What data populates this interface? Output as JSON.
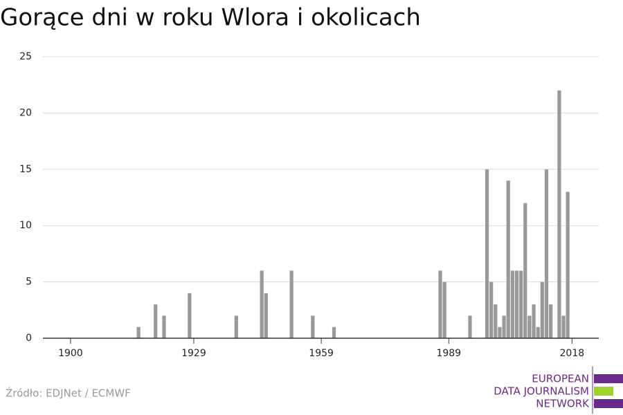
{
  "chart_data": {
    "type": "bar",
    "title": "Gorące dni w roku Wlora i okolicach",
    "x": [
      1916,
      1920,
      1922,
      1928,
      1939,
      1945,
      1946,
      1952,
      1957,
      1962,
      1987,
      1988,
      1994,
      1998,
      1999,
      2000,
      2001,
      2002,
      2003,
      2004,
      2005,
      2006,
      2007,
      2008,
      2009,
      2010,
      2011,
      2012,
      2013,
      2015,
      2016,
      2017
    ],
    "values": [
      1,
      3,
      2,
      4,
      2,
      6,
      4,
      6,
      2,
      1,
      6,
      5,
      2,
      15,
      5,
      3,
      1,
      2,
      14,
      6,
      6,
      6,
      12,
      2,
      3,
      1,
      5,
      15,
      3,
      22,
      2,
      13
    ],
    "color": "#999999",
    "xlim": [
      1893.5,
      2024.3
    ],
    "xticks": [
      1900,
      1929,
      1959,
      1989,
      2018
    ],
    "ylim": [
      0,
      25
    ],
    "yticks": [
      0,
      5,
      10,
      15,
      20,
      25
    ],
    "grid": true,
    "source": "Źródło: EDJNet / ECMWF"
  },
  "logo": [
    "EUROPEAN",
    "DATA JOURNALISM",
    "NETWORK"
  ]
}
